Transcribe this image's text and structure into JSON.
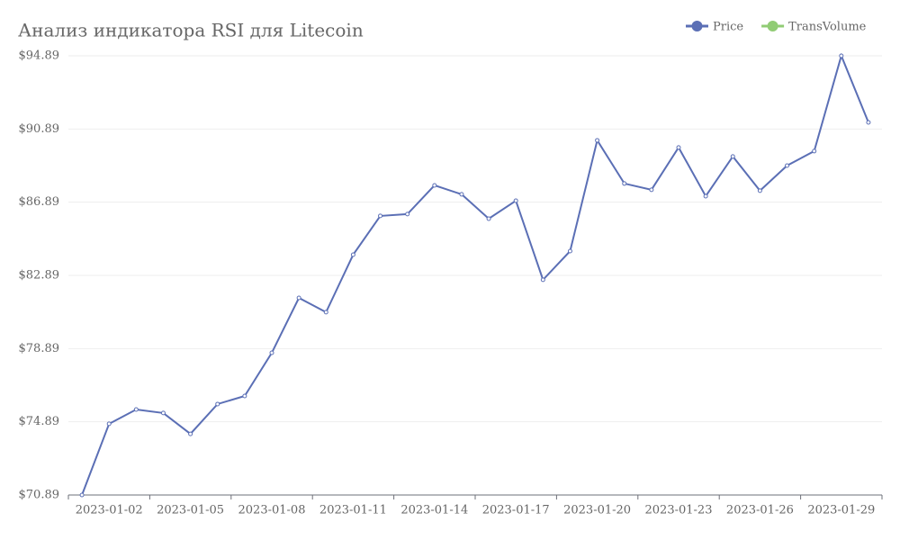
{
  "chart_data": {
    "type": "line",
    "title": "Анализ индикатора RSI для Litecoin",
    "categories": [
      null,
      "2023-01-02",
      null,
      null,
      "2023-01-05",
      null,
      null,
      "2023-01-08",
      null,
      null,
      "2023-01-11",
      null,
      null,
      "2023-01-14",
      null,
      null,
      "2023-01-17",
      null,
      null,
      "2023-01-20",
      null,
      null,
      "2023-01-23",
      null,
      null,
      "2023-01-26",
      null,
      null,
      "2023-01-29",
      null
    ],
    "series": [
      {
        "name": "Price",
        "color": "#5b6fb5",
        "values": [
          70.89,
          74.78,
          75.56,
          75.37,
          74.23,
          75.86,
          76.3,
          78.66,
          81.66,
          80.88,
          84.02,
          86.14,
          86.24,
          87.81,
          87.32,
          85.99,
          86.97,
          82.65,
          84.22,
          90.27,
          87.91,
          87.57,
          89.88,
          87.22,
          89.39,
          87.52,
          88.89,
          89.68,
          94.89,
          91.25
        ]
      },
      {
        "name": "TransVolume",
        "color": "#91cc75",
        "values": [
          null,
          null,
          null,
          null,
          null,
          null,
          null,
          null,
          null,
          null,
          null,
          null,
          null,
          null,
          null,
          null,
          null,
          null,
          null,
          null,
          null,
          null,
          null,
          null,
          null,
          null,
          null,
          null,
          null,
          null
        ]
      }
    ],
    "ylim": [
      70.89,
      94.89
    ],
    "yticks": [
      {
        "value": 70.89,
        "label": "$70.89"
      },
      {
        "value": 74.89,
        "label": "$74.89"
      },
      {
        "value": 78.89,
        "label": "$78.89"
      },
      {
        "value": 82.89,
        "label": "$82.89"
      },
      {
        "value": 86.89,
        "label": "$86.89"
      },
      {
        "value": 90.89,
        "label": "$90.89"
      },
      {
        "value": 94.89,
        "label": "$94.89"
      }
    ],
    "grid": true,
    "legend": "top-right"
  }
}
